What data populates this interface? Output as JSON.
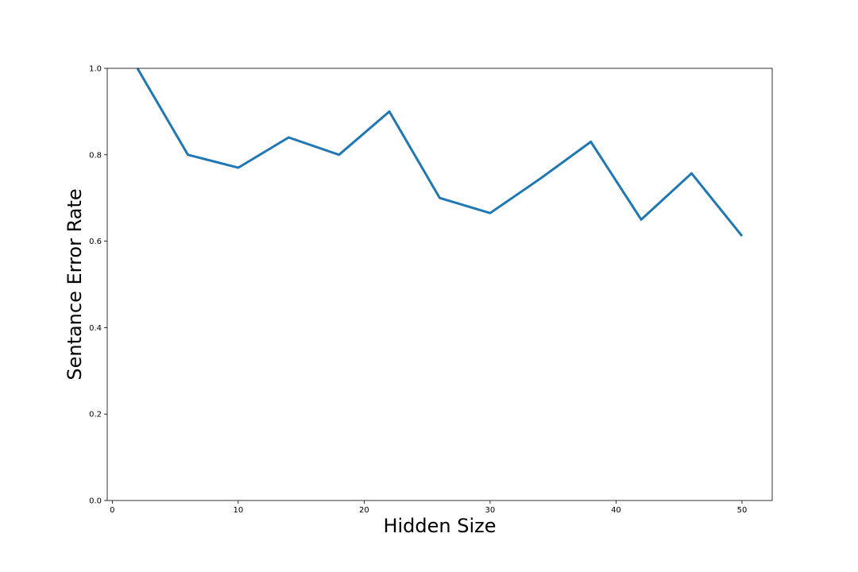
{
  "chart_data": {
    "type": "line",
    "title": "",
    "xlabel": "Hidden Size",
    "ylabel": "Sentance Error Rate",
    "xlim": [
      -0.4,
      52.4
    ],
    "ylim": [
      0.0,
      1.0
    ],
    "x_ticks": [
      0,
      10,
      20,
      30,
      40,
      50
    ],
    "x_tick_labels": [
      "0",
      "10",
      "20",
      "30",
      "40",
      "50"
    ],
    "y_ticks": [
      0.0,
      0.2,
      0.4,
      0.6,
      0.8,
      1.0
    ],
    "y_tick_labels": [
      "0.0",
      "0.2",
      "0.4",
      "0.6",
      "0.8",
      "1.0"
    ],
    "grid": false,
    "legend": "none",
    "series": [
      {
        "color": "#1f77b4",
        "x": [
          2,
          6,
          10,
          14,
          18,
          22,
          26,
          30,
          34,
          38,
          42,
          46,
          50
        ],
        "y": [
          1.0,
          0.8,
          0.77,
          0.84,
          0.8,
          0.9,
          0.7,
          0.665,
          0.745,
          0.83,
          0.65,
          0.757,
          0.612
        ]
      }
    ]
  }
}
